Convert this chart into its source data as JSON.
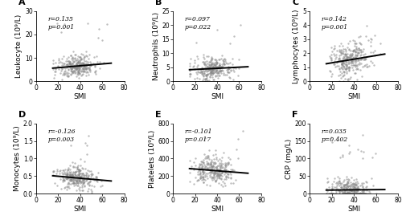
{
  "panels": [
    {
      "label": "A",
      "r_str": "r=0.135",
      "p_str": "p=0.001",
      "ylabel": "Leukocyte (10⁹/L)",
      "xlabel": "SMI",
      "xlim": [
        0,
        80
      ],
      "ylim": [
        0,
        30
      ],
      "yticks": [
        0,
        10,
        20,
        30
      ],
      "xticks": [
        0,
        20,
        40,
        60,
        80
      ],
      "slope": 0.04,
      "intercept": 5.0,
      "x_mean": 36,
      "x_std": 9,
      "y_mean": 7.0,
      "y_std": 2.5,
      "noise_scale": 2.4,
      "n_points": 300,
      "outlier_ymax": 26,
      "outlier_n": 8
    },
    {
      "label": "B",
      "r_str": "r=0.097",
      "p_str": "p=0.022",
      "ylabel": "Neutrophils (10⁹/L)",
      "xlabel": "SMI",
      "xlim": [
        0,
        80
      ],
      "ylim": [
        0,
        25
      ],
      "yticks": [
        0,
        5,
        10,
        15,
        20,
        25
      ],
      "xticks": [
        0,
        20,
        40,
        60,
        80
      ],
      "slope": 0.02,
      "intercept": 3.8,
      "x_mean": 36,
      "x_std": 9,
      "y_mean": 4.5,
      "y_std": 2.0,
      "noise_scale": 1.9,
      "n_points": 300,
      "outlier_ymax": 22,
      "outlier_n": 6
    },
    {
      "label": "C",
      "r_str": "r=0.142",
      "p_str": "p=0.001",
      "ylabel": "Lymphocytes (10⁹/L)",
      "xlabel": "SMI",
      "xlim": [
        0,
        80
      ],
      "ylim": [
        0,
        5
      ],
      "yticks": [
        0,
        1,
        2,
        3,
        4,
        5
      ],
      "xticks": [
        0,
        20,
        40,
        60,
        80
      ],
      "slope": 0.013,
      "intercept": 1.05,
      "x_mean": 36,
      "x_std": 9,
      "y_mean": 1.6,
      "y_std": 0.65,
      "noise_scale": 0.62,
      "n_points": 300,
      "outlier_ymax": 4.8,
      "outlier_n": 6
    },
    {
      "label": "D",
      "r_str": "r=-0.126",
      "p_str": "p=0.003",
      "ylabel": "Monocytes (10⁹/L)",
      "xlabel": "SMI",
      "xlim": [
        0,
        80
      ],
      "ylim": [
        0,
        2.0
      ],
      "yticks": [
        0.0,
        0.5,
        1.0,
        1.5,
        2.0
      ],
      "xticks": [
        0,
        20,
        40,
        60,
        80
      ],
      "slope": -0.0028,
      "intercept": 0.55,
      "x_mean": 36,
      "x_std": 9,
      "y_mean": 0.46,
      "y_std": 0.18,
      "noise_scale": 0.17,
      "n_points": 300,
      "outlier_ymax": 1.9,
      "outlier_n": 5
    },
    {
      "label": "E",
      "r_str": "r=-0.101",
      "p_str": "p=0.017",
      "ylabel": "Platelets (10⁹/L)",
      "xlabel": "SMI",
      "xlim": [
        0,
        80
      ],
      "ylim": [
        0,
        800
      ],
      "yticks": [
        0,
        200,
        400,
        600,
        800
      ],
      "xticks": [
        0,
        20,
        40,
        60,
        80
      ],
      "slope": -1.0,
      "intercept": 300,
      "x_mean": 36,
      "x_std": 9,
      "y_mean": 265,
      "y_std": 80,
      "noise_scale": 78,
      "n_points": 300,
      "outlier_ymax": 780,
      "outlier_n": 6
    },
    {
      "label": "F",
      "r_str": "r=0.035",
      "p_str": "p=0.402",
      "ylabel": "CRP (mg/L)",
      "xlabel": "SMI",
      "xlim": [
        0,
        80
      ],
      "ylim": [
        0,
        200
      ],
      "yticks": [
        0,
        50,
        100,
        150,
        200
      ],
      "xticks": [
        0,
        20,
        40,
        60,
        80
      ],
      "slope": 0.03,
      "intercept": 9.5,
      "x_mean": 36,
      "x_std": 9,
      "y_mean": 12,
      "y_std": 18,
      "noise_scale": 17,
      "n_points": 300,
      "outlier_ymax": 170,
      "outlier_n": 15
    }
  ],
  "scatter_color": "#888888",
  "scatter_alpha": 0.55,
  "scatter_size": 3,
  "line_color": "#000000",
  "line_width": 1.4,
  "annot_fontsize": 5.5,
  "label_fontsize": 6.5,
  "tick_fontsize": 5.5,
  "panel_label_fontsize": 8,
  "background_color": "#ffffff"
}
